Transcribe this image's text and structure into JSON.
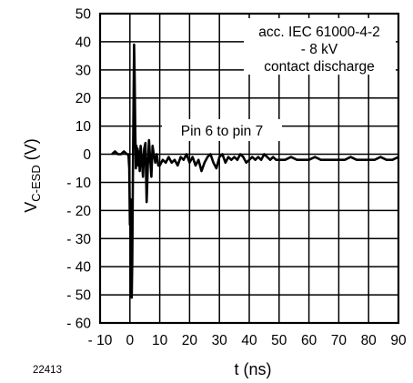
{
  "figure_id": "22413",
  "chart_data": {
    "type": "line",
    "title": "",
    "xlabel": "t (ns)",
    "ylabel": {
      "main": "V",
      "subscript": "C-ESD",
      "unit": " (V)"
    },
    "xlim": [
      -10,
      90
    ],
    "ylim": [
      -60,
      50
    ],
    "x_ticks": [
      -10,
      0,
      10,
      20,
      30,
      40,
      50,
      60,
      70,
      80,
      90
    ],
    "x_tick_labels": [
      "- 10",
      "0",
      "10",
      "20",
      "30",
      "40",
      "50",
      "60",
      "70",
      "80",
      "90"
    ],
    "y_ticks": [
      50,
      40,
      30,
      20,
      10,
      0,
      -10,
      -20,
      -30,
      -40,
      -50,
      -60
    ],
    "y_tick_labels": [
      "50",
      "40",
      "30",
      "20",
      "10",
      "0",
      "- 10",
      "- 20",
      "- 30",
      "- 40",
      "- 50",
      "- 60"
    ],
    "grid": true,
    "annotations": [
      {
        "lines": [
          "acc. IEC 61000-4-2",
          "- 8 kV",
          "contact discharge"
        ],
        "position": "top-right"
      },
      {
        "lines": [
          "Pin 6 to pin 7"
        ],
        "position": "center"
      }
    ],
    "series": [
      {
        "color": "#000000",
        "x": [
          -6,
          -5,
          -4,
          -3,
          -2,
          -1,
          -0.5,
          -0.2,
          0.0,
          0.2,
          0.4,
          0.6,
          0.8,
          1.0,
          1.2,
          1.4,
          1.6,
          1.8,
          2.0,
          2.2,
          2.4,
          2.6,
          2.8,
          3.0,
          3.3,
          3.6,
          4.0,
          4.4,
          4.8,
          5.2,
          5.6,
          6.0,
          6.4,
          6.8,
          7.2,
          7.6,
          8.0,
          8.5,
          9.0,
          9.5,
          10,
          11,
          12,
          13,
          14,
          15,
          16,
          17,
          18,
          19,
          20,
          21,
          22,
          23,
          24,
          25,
          26,
          27,
          28,
          29,
          30,
          31,
          32,
          33,
          34,
          35,
          36,
          37,
          38,
          39,
          40,
          41,
          42,
          43,
          44,
          45,
          46,
          47,
          48,
          49,
          50,
          52,
          54,
          56,
          58,
          60,
          62,
          64,
          66,
          68,
          70,
          72,
          74,
          76,
          78,
          80,
          82,
          84,
          86,
          88,
          90
        ],
        "y": [
          0,
          1,
          0,
          0,
          1,
          0,
          0,
          -5,
          -25,
          -16,
          -45,
          -51,
          -38,
          -8,
          15,
          39,
          28,
          8,
          -5,
          3,
          -2,
          2,
          -4,
          1,
          -6,
          3,
          -2,
          -8,
          2,
          4,
          -17,
          -4,
          5,
          -2,
          -8,
          3,
          0,
          -3,
          0,
          -4,
          -4,
          -2,
          -3,
          -1,
          -3,
          -2,
          -4,
          -1,
          -2,
          0,
          -3,
          -1,
          -4,
          -2,
          -6,
          -3,
          -1,
          0,
          -3,
          -5,
          -1,
          0,
          -3,
          -1,
          -2,
          -1,
          -2,
          0,
          -1,
          -3,
          -2,
          -1,
          -2,
          -1,
          -2,
          0,
          -1,
          -2,
          -1,
          -2,
          -2,
          -2,
          -1,
          -2,
          -2,
          -2,
          -1,
          -2,
          -2,
          -2,
          -2,
          -2,
          -1,
          -2,
          -2,
          -2,
          -2,
          -1,
          -2,
          -2,
          -1
        ]
      }
    ]
  }
}
